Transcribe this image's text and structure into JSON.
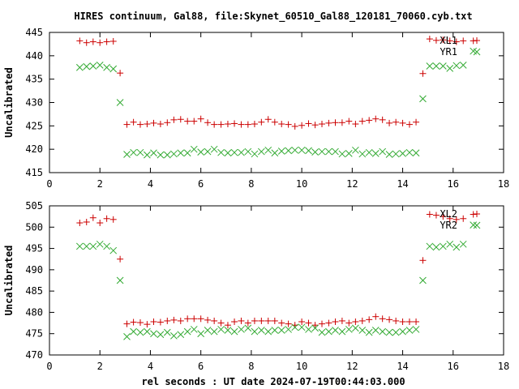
{
  "title": "HIRES continuum, Gal88, file:Skynet_60510_Gal88_120181_70060.cyb.txt",
  "xlabel": "rel seconds : UT date 2024-07-19T00:44:03.000",
  "colors": {
    "red": "#cc0000",
    "green": "#33aa33"
  },
  "chart_data": [
    {
      "type": "scatter",
      "ylabel": "Uncalibrated",
      "xlim": [
        0,
        18
      ],
      "ylim": [
        415,
        445
      ],
      "xticks": [
        0,
        2,
        4,
        6,
        8,
        10,
        12,
        14,
        16,
        18
      ],
      "yticks": [
        415,
        420,
        425,
        430,
        435,
        440,
        445
      ],
      "legend": "top-right",
      "series": [
        {
          "name": "XL1",
          "marker": "plus",
          "color": "#cc0000",
          "x": [
            1.2,
            1.47,
            1.73,
            2.0,
            2.27,
            2.53,
            2.8,
            3.07,
            3.33,
            3.6,
            3.87,
            4.13,
            4.4,
            4.67,
            4.93,
            5.2,
            5.47,
            5.73,
            6.0,
            6.27,
            6.53,
            6.8,
            7.07,
            7.33,
            7.6,
            7.87,
            8.13,
            8.4,
            8.67,
            8.93,
            9.2,
            9.47,
            9.73,
            10.0,
            10.27,
            10.53,
            10.8,
            11.07,
            11.33,
            11.6,
            11.87,
            12.13,
            12.4,
            12.67,
            12.93,
            13.2,
            13.47,
            13.73,
            14.0,
            14.27,
            14.53,
            14.8,
            15.07,
            15.33,
            15.6,
            15.87,
            16.13,
            16.4,
            16.8
          ],
          "y": [
            443.2,
            442.8,
            443.0,
            442.8,
            443.0,
            443.1,
            436.3,
            425.3,
            425.8,
            425.3,
            425.4,
            425.6,
            425.4,
            425.7,
            426.3,
            426.4,
            426.0,
            426.0,
            426.5,
            425.7,
            425.3,
            425.3,
            425.4,
            425.5,
            425.3,
            425.3,
            425.4,
            425.8,
            426.4,
            425.8,
            425.4,
            425.3,
            424.9,
            425.1,
            425.5,
            425.2,
            425.4,
            425.6,
            425.7,
            425.7,
            426.0,
            425.4,
            426.0,
            426.2,
            426.5,
            426.3,
            425.6,
            425.8,
            425.6,
            425.3,
            425.8,
            436.2,
            443.6,
            443.3,
            443.4,
            443.2,
            443.0,
            443.2,
            443.2
          ]
        },
        {
          "name": "YR1",
          "marker": "cross",
          "color": "#33aa33",
          "x": [
            1.2,
            1.47,
            1.73,
            2.0,
            2.27,
            2.53,
            2.8,
            3.07,
            3.33,
            3.6,
            3.87,
            4.13,
            4.4,
            4.67,
            4.93,
            5.2,
            5.47,
            5.73,
            6.0,
            6.27,
            6.53,
            6.8,
            7.07,
            7.33,
            7.6,
            7.87,
            8.13,
            8.4,
            8.67,
            8.93,
            9.2,
            9.47,
            9.73,
            10.0,
            10.27,
            10.53,
            10.8,
            11.07,
            11.33,
            11.6,
            11.87,
            12.13,
            12.4,
            12.67,
            12.93,
            13.2,
            13.47,
            13.73,
            14.0,
            14.27,
            14.53,
            14.8,
            15.07,
            15.33,
            15.6,
            15.87,
            16.13,
            16.4,
            16.8
          ],
          "y": [
            437.5,
            437.7,
            437.8,
            438.0,
            437.5,
            437.2,
            430.0,
            418.9,
            419.3,
            419.3,
            418.8,
            419.2,
            418.8,
            418.8,
            419.0,
            419.2,
            419.2,
            420.0,
            419.4,
            419.5,
            420.0,
            419.3,
            419.2,
            419.3,
            419.3,
            419.5,
            419.0,
            419.5,
            419.8,
            419.2,
            419.6,
            419.7,
            419.8,
            419.8,
            419.7,
            419.4,
            419.5,
            419.5,
            419.5,
            419.0,
            419.1,
            419.8,
            419.0,
            419.3,
            419.1,
            419.5,
            418.9,
            419.0,
            419.1,
            419.3,
            419.2,
            430.8,
            437.8,
            437.8,
            437.8,
            437.3,
            437.9,
            438.0,
            441.0
          ]
        }
      ]
    },
    {
      "type": "scatter",
      "ylabel": "Uncalibrated",
      "xlim": [
        0,
        18
      ],
      "ylim": [
        470,
        505
      ],
      "xticks": [
        0,
        2,
        4,
        6,
        8,
        10,
        12,
        14,
        16,
        18
      ],
      "yticks": [
        470,
        475,
        480,
        485,
        490,
        495,
        500,
        505
      ],
      "legend": "top-right",
      "series": [
        {
          "name": "XL2",
          "marker": "plus",
          "color": "#cc0000",
          "x": [
            1.2,
            1.47,
            1.73,
            2.0,
            2.27,
            2.53,
            2.8,
            3.07,
            3.33,
            3.6,
            3.87,
            4.13,
            4.4,
            4.67,
            4.93,
            5.2,
            5.47,
            5.73,
            6.0,
            6.27,
            6.53,
            6.8,
            7.07,
            7.33,
            7.6,
            7.87,
            8.13,
            8.4,
            8.67,
            8.93,
            9.2,
            9.47,
            9.73,
            10.0,
            10.27,
            10.53,
            10.8,
            11.07,
            11.33,
            11.6,
            11.87,
            12.13,
            12.4,
            12.67,
            12.93,
            13.2,
            13.47,
            13.73,
            14.0,
            14.27,
            14.53,
            14.8,
            15.07,
            15.33,
            15.6,
            15.87,
            16.13,
            16.4,
            16.8
          ],
          "y": [
            501.0,
            501.2,
            502.2,
            501.0,
            502.0,
            501.8,
            492.5,
            477.3,
            477.7,
            477.6,
            477.2,
            477.8,
            477.7,
            478.0,
            478.2,
            478.0,
            478.5,
            478.5,
            478.5,
            478.2,
            478.0,
            477.5,
            477.0,
            477.8,
            478.0,
            477.5,
            478.0,
            478.0,
            478.0,
            478.0,
            477.5,
            477.3,
            477.0,
            477.8,
            477.5,
            477.0,
            477.3,
            477.5,
            477.8,
            478.0,
            477.5,
            477.8,
            478.0,
            478.3,
            479.0,
            478.5,
            478.3,
            478.0,
            477.8,
            477.8,
            477.8,
            492.2,
            503.0,
            502.8,
            502.5,
            502.0,
            501.8,
            502.0,
            503.0
          ]
        },
        {
          "name": "YR2",
          "marker": "cross",
          "color": "#33aa33",
          "x": [
            1.2,
            1.47,
            1.73,
            2.0,
            2.27,
            2.53,
            2.8,
            3.07,
            3.33,
            3.6,
            3.87,
            4.13,
            4.4,
            4.67,
            4.93,
            5.2,
            5.47,
            5.73,
            6.0,
            6.27,
            6.53,
            6.8,
            7.07,
            7.33,
            7.6,
            7.87,
            8.13,
            8.4,
            8.67,
            8.93,
            9.2,
            9.47,
            9.73,
            10.0,
            10.27,
            10.53,
            10.8,
            11.07,
            11.33,
            11.6,
            11.87,
            12.13,
            12.4,
            12.67,
            12.93,
            13.2,
            13.47,
            13.73,
            14.0,
            14.27,
            14.53,
            14.8,
            15.07,
            15.33,
            15.6,
            15.87,
            16.13,
            16.4,
            16.8
          ],
          "y": [
            495.5,
            495.5,
            495.5,
            496.0,
            495.5,
            494.5,
            487.5,
            474.3,
            475.5,
            475.3,
            475.5,
            475.0,
            474.8,
            475.3,
            474.5,
            474.8,
            475.5,
            476.0,
            475.0,
            475.8,
            475.5,
            476.0,
            475.8,
            475.5,
            476.0,
            476.3,
            475.5,
            475.8,
            475.5,
            475.8,
            475.8,
            476.0,
            476.5,
            476.5,
            476.0,
            476.3,
            475.3,
            475.5,
            475.8,
            475.5,
            476.0,
            476.3,
            475.8,
            475.3,
            475.8,
            475.5,
            475.3,
            475.3,
            475.5,
            475.8,
            476.0,
            487.5,
            495.5,
            495.3,
            495.5,
            496.0,
            495.3,
            496.0,
            500.5
          ]
        }
      ]
    }
  ]
}
